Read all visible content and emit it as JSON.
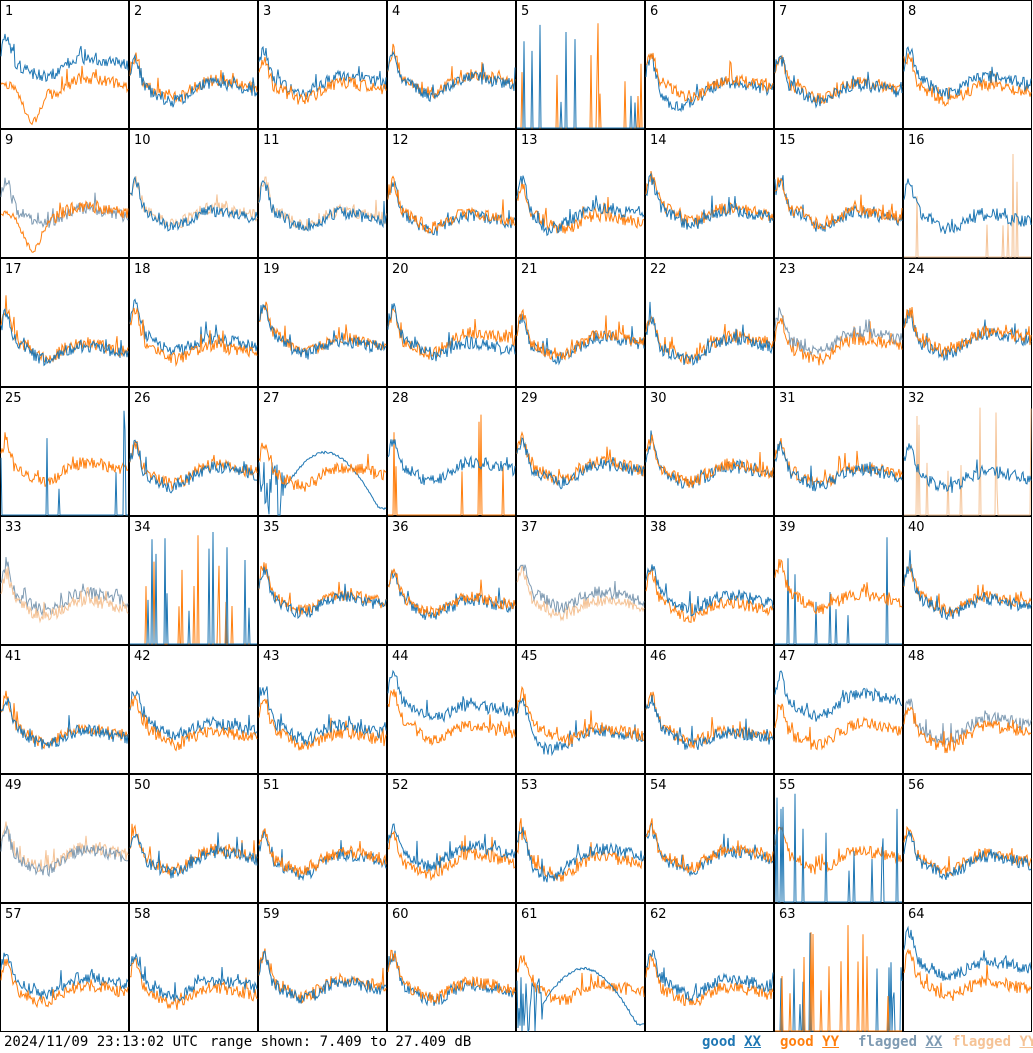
{
  "chart_data": {
    "type": "line",
    "title": "",
    "grid": {
      "rows": 8,
      "cols": 8
    },
    "panel_labels": [
      "1",
      "2",
      "3",
      "4",
      "5",
      "6",
      "7",
      "8",
      "9",
      "10",
      "11",
      "12",
      "13",
      "14",
      "15",
      "16",
      "17",
      "18",
      "19",
      "20",
      "21",
      "22",
      "23",
      "24",
      "25",
      "26",
      "27",
      "28",
      "29",
      "30",
      "31",
      "32",
      "33",
      "34",
      "35",
      "36",
      "37",
      "38",
      "39",
      "40",
      "41",
      "42",
      "43",
      "44",
      "45",
      "46",
      "47",
      "48",
      "49",
      "50",
      "51",
      "52",
      "53",
      "54",
      "55",
      "56",
      "57",
      "58",
      "59",
      "60",
      "61",
      "62",
      "63",
      "64"
    ],
    "ylim": [
      7.409,
      27.409
    ],
    "yunit": "dB",
    "series_styles": [
      {
        "name": "good XX",
        "color": "#1f77b4"
      },
      {
        "name": "good YY",
        "color": "#ff7f0e"
      },
      {
        "name": "flagged XX",
        "color": "#7f9bb3"
      },
      {
        "name": "flagged YY",
        "color": "#f5c396"
      }
    ],
    "panels_flagged": {
      "xx": [
        9,
        23,
        33,
        37,
        48,
        49
      ],
      "yy": [
        10,
        11,
        16,
        32,
        33,
        37,
        49
      ]
    },
    "panels_special": {
      "xx_spikes": [
        5,
        25,
        39,
        34,
        55,
        63
      ],
      "yy_spikes": [
        5,
        16,
        28,
        32,
        34,
        63
      ],
      "xx_dip": [
        27,
        61
      ],
      "yy_dip": [
        9,
        1
      ],
      "xx_low_trend": [
        6,
        13,
        45,
        53
      ],
      "xx_high_trend": [
        1,
        5,
        44,
        47,
        64
      ]
    }
  },
  "footer": {
    "timestamp": "2024/11/09 23:13:02 UTC",
    "range": "range shown: 7.409 to 27.409 dB"
  },
  "legend": {
    "good_xx": {
      "prefix": "good ",
      "pol": "XX",
      "color": "#1f77b4"
    },
    "good_yy": {
      "prefix": "good ",
      "pol": "YY",
      "color": "#ff7f0e"
    },
    "flagged_xx": {
      "prefix": "flagged ",
      "pol": "XX",
      "color": "#7f9bb3"
    },
    "flagged_yy": {
      "prefix": "flagged ",
      "pol": "YY",
      "color": "#f5c396"
    }
  }
}
